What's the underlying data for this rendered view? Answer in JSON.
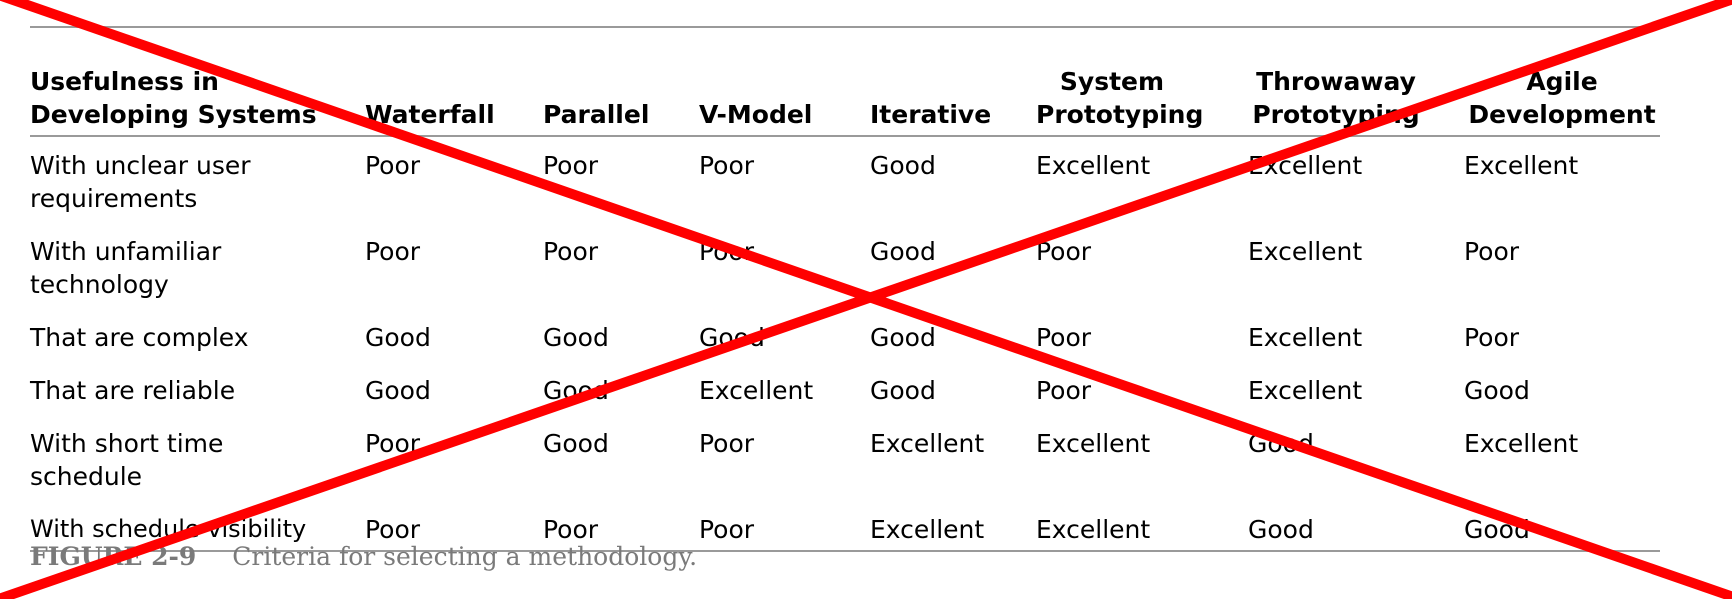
{
  "table": {
    "header": [
      "Usefulness in Developing Systems",
      "Waterfall",
      "Parallel",
      "V-Model",
      "Iterative",
      "System Prototyping",
      "Throwaway Prototyping",
      "Agile Development"
    ],
    "rows": [
      [
        "With unclear user requirements",
        "Poor",
        "Poor",
        "Poor",
        "Good",
        "Excellent",
        "Excellent",
        "Excellent"
      ],
      [
        "With unfamiliar technology",
        "Poor",
        "Poor",
        "Poor",
        "Good",
        "Poor",
        "Excellent",
        "Poor"
      ],
      [
        "That are complex",
        "Good",
        "Good",
        "Good",
        "Good",
        "Poor",
        "Excellent",
        "Poor"
      ],
      [
        "That are reliable",
        "Good",
        "Good",
        "Excellent",
        "Good",
        "Poor",
        "Excellent",
        "Good"
      ],
      [
        "With short time schedule",
        "Poor",
        "Good",
        "Poor",
        "Excellent",
        "Excellent",
        "Good",
        "Excellent"
      ],
      [
        "With schedule visibility",
        "Poor",
        "Poor",
        "Poor",
        "Excellent",
        "Excellent",
        "Good",
        "Good"
      ]
    ]
  },
  "caption": {
    "figure_number": "FIGURE 2-9",
    "text": "Criteria for selecting a methodology."
  },
  "overlay": {
    "color": "#ff0000"
  }
}
